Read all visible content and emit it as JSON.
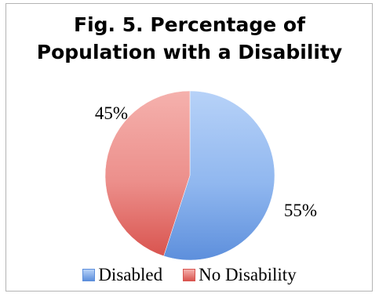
{
  "chart_data": {
    "type": "pie",
    "title": "Fig. 5. Percentage of\nPopulation with a Disability",
    "categories": [
      "Disabled",
      "No Disability"
    ],
    "values": [
      55,
      45
    ],
    "value_labels": [
      "55%",
      "45%"
    ],
    "colors": [
      "#7aa8e8",
      "#e87b78"
    ],
    "legend": {
      "position": "bottom",
      "entries": [
        "Disabled",
        "No Disability"
      ]
    }
  }
}
